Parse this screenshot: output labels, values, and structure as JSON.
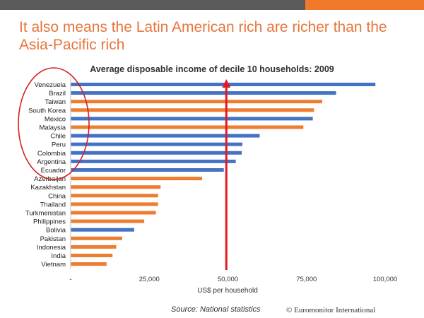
{
  "slide": {
    "headline": "It also means the Latin American rich are richer than the Asia-Pacific rich",
    "source": "Source: National statistics",
    "brand": "© Euromonitor International"
  },
  "colors": {
    "latin_america": "#4472c4",
    "asia_pacific": "#ed7d31",
    "marker_arrow": "#e01b24",
    "highlight_ellipse": "#d62020",
    "headline": "#e8743b"
  },
  "chart_data": {
    "type": "bar",
    "orientation": "horizontal",
    "title": "Average disposable income of decile 10 households: 2009",
    "xlabel": "US$ per household",
    "ylabel": "",
    "xlim": [
      0,
      100000
    ],
    "xticks": [
      {
        "value": 0,
        "label": "-"
      },
      {
        "value": 25000,
        "label": "25,000"
      },
      {
        "value": 50000,
        "label": "50,000"
      },
      {
        "value": 75000,
        "label": "75,000"
      },
      {
        "value": 100000,
        "label": "100,000"
      }
    ],
    "grid": false,
    "legend": "none",
    "categories": [
      "Venezuela",
      "Brazil",
      "Taiwan",
      "South Korea",
      "Mexico",
      "Malaysia",
      "Chile",
      "Peru",
      "Colombia",
      "Argentina",
      "Ecuador",
      "Azerbaijan",
      "Kazakhstan",
      "China",
      "Thailand",
      "Turkmenistan",
      "Philippines",
      "Bolivia",
      "Pakistan",
      "Indonesia",
      "India",
      "Vietnam"
    ],
    "values": [
      96900,
      84400,
      80000,
      77400,
      77000,
      74000,
      60100,
      54600,
      54400,
      52500,
      48700,
      41800,
      28600,
      27800,
      27800,
      27100,
      23400,
      20200,
      16400,
      14500,
      13300,
      11400
    ],
    "groups": [
      "latin_america",
      "latin_america",
      "asia_pacific",
      "asia_pacific",
      "latin_america",
      "asia_pacific",
      "latin_america",
      "latin_america",
      "latin_america",
      "latin_america",
      "latin_america",
      "asia_pacific",
      "asia_pacific",
      "asia_pacific",
      "asia_pacific",
      "asia_pacific",
      "asia_pacific",
      "latin_america",
      "asia_pacific",
      "asia_pacific",
      "asia_pacific",
      "asia_pacific"
    ],
    "reference_line": {
      "value": 49500
    }
  }
}
